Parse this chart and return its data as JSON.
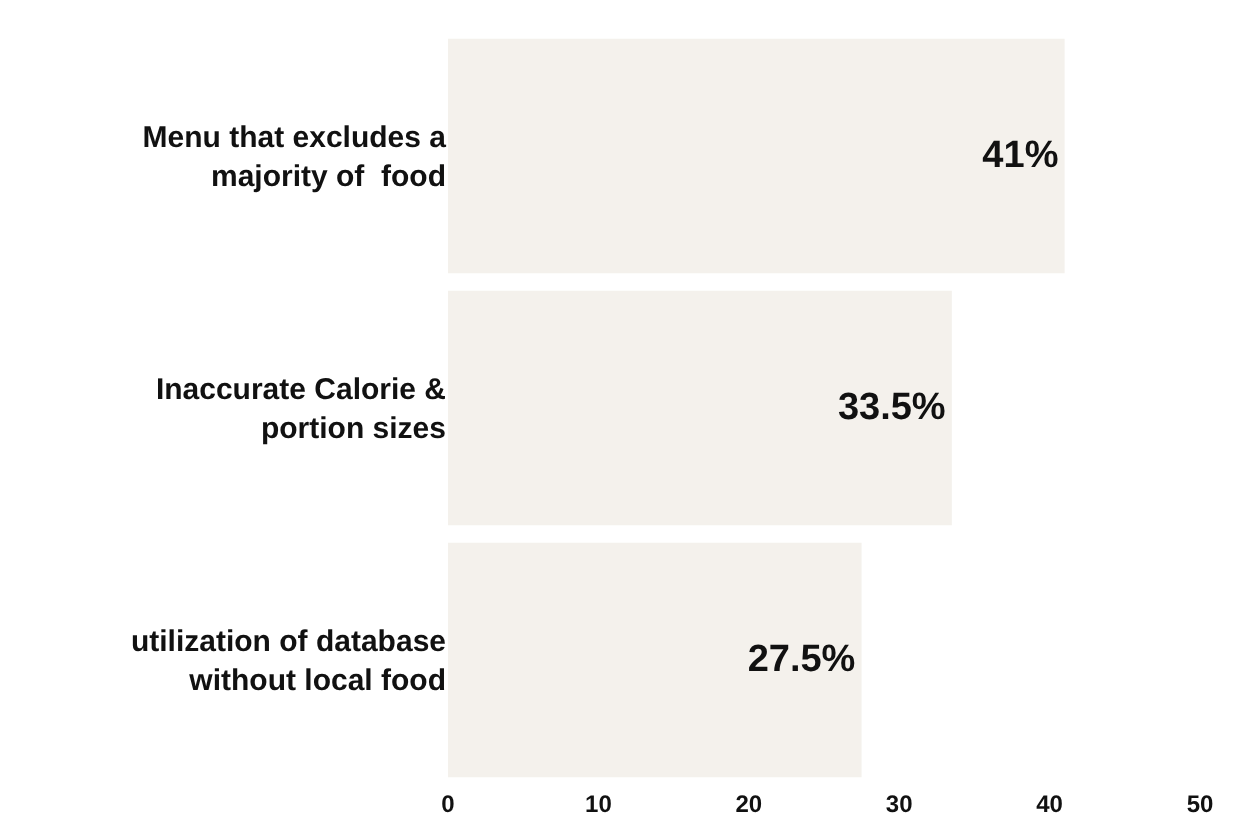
{
  "chart_data": {
    "type": "bar",
    "orientation": "horizontal",
    "categories": [
      "Menu that excludes a majority of  food",
      "Inaccurate Calorie & portion sizes",
      "utilization of database without local food"
    ],
    "values": [
      41,
      33.5,
      27.5
    ],
    "value_labels": [
      "41%",
      "33.5%",
      "27.5%"
    ],
    "color": "#f4f1ec",
    "xlim": [
      0,
      50
    ],
    "xticks": [
      0,
      10,
      20,
      30,
      40,
      50
    ]
  }
}
